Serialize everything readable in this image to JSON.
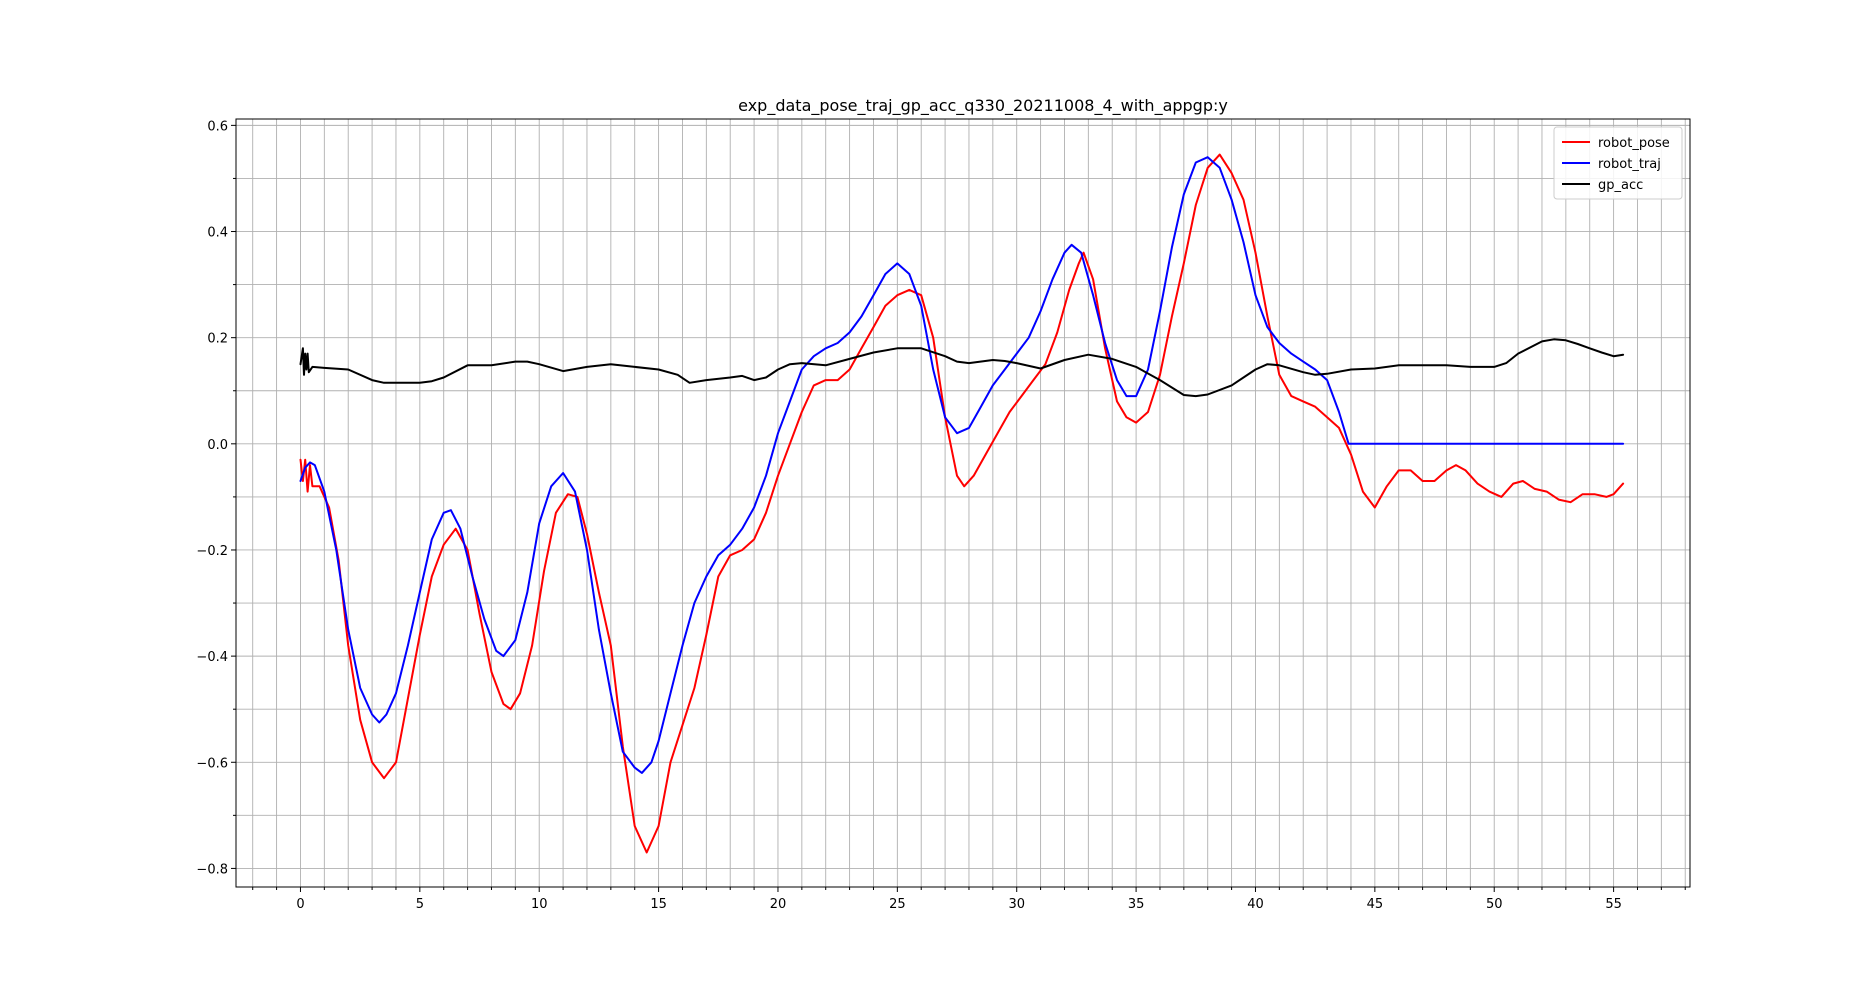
{
  "chart_data": {
    "type": "line",
    "title": "exp_data_pose_traj_gp_acc_q330_20211008_4_with_appgp:y",
    "xlabel": "",
    "ylabel": "",
    "xlim": [
      -2.7,
      58.2
    ],
    "ylim": [
      -0.835,
      0.612
    ],
    "x_major_ticks": [
      0,
      5,
      10,
      15,
      20,
      25,
      30,
      35,
      40,
      45,
      50,
      55
    ],
    "x_minor_step": 1,
    "y_major_ticks": [
      -0.8,
      -0.6,
      -0.4,
      -0.2,
      0.0,
      0.2,
      0.4,
      0.6
    ],
    "y_minor_step": 0.1,
    "y_tick_labels": [
      "−0.8",
      "−0.6",
      "−0.4",
      "−0.2",
      "0.0",
      "0.2",
      "0.4",
      "0.6"
    ],
    "grid": true,
    "legend_position": "top-right",
    "series": [
      {
        "name": "robot_pose",
        "color": "#ff0000",
        "points": [
          [
            0,
            -0.03
          ],
          [
            0.1,
            -0.07
          ],
          [
            0.2,
            -0.03
          ],
          [
            0.3,
            -0.09
          ],
          [
            0.4,
            -0.04
          ],
          [
            0.5,
            -0.08
          ],
          [
            0.8,
            -0.08
          ],
          [
            1.2,
            -0.12
          ],
          [
            1.6,
            -0.22
          ],
          [
            2.0,
            -0.38
          ],
          [
            2.5,
            -0.52
          ],
          [
            3.0,
            -0.6
          ],
          [
            3.5,
            -0.63
          ],
          [
            4.0,
            -0.6
          ],
          [
            4.5,
            -0.48
          ],
          [
            5.0,
            -0.36
          ],
          [
            5.5,
            -0.25
          ],
          [
            6.0,
            -0.19
          ],
          [
            6.5,
            -0.16
          ],
          [
            7.0,
            -0.2
          ],
          [
            7.5,
            -0.32
          ],
          [
            8.0,
            -0.43
          ],
          [
            8.5,
            -0.49
          ],
          [
            8.8,
            -0.5
          ],
          [
            9.2,
            -0.47
          ],
          [
            9.7,
            -0.38
          ],
          [
            10.2,
            -0.24
          ],
          [
            10.7,
            -0.13
          ],
          [
            11.2,
            -0.095
          ],
          [
            11.6,
            -0.1
          ],
          [
            12.0,
            -0.17
          ],
          [
            12.5,
            -0.28
          ],
          [
            13.0,
            -0.38
          ],
          [
            13.5,
            -0.57
          ],
          [
            14.0,
            -0.72
          ],
          [
            14.5,
            -0.77
          ],
          [
            15.0,
            -0.72
          ],
          [
            15.5,
            -0.6
          ],
          [
            16.0,
            -0.53
          ],
          [
            16.5,
            -0.46
          ],
          [
            17.0,
            -0.36
          ],
          [
            17.5,
            -0.25
          ],
          [
            18.0,
            -0.21
          ],
          [
            18.5,
            -0.2
          ],
          [
            19.0,
            -0.18
          ],
          [
            19.5,
            -0.13
          ],
          [
            20.0,
            -0.06
          ],
          [
            20.5,
            0.0
          ],
          [
            21.0,
            0.06
          ],
          [
            21.5,
            0.11
          ],
          [
            22.0,
            0.12
          ],
          [
            22.5,
            0.12
          ],
          [
            23.0,
            0.14
          ],
          [
            23.5,
            0.18
          ],
          [
            24.0,
            0.22
          ],
          [
            24.5,
            0.26
          ],
          [
            25.0,
            0.28
          ],
          [
            25.5,
            0.29
          ],
          [
            26.0,
            0.28
          ],
          [
            26.5,
            0.2
          ],
          [
            27.0,
            0.05
          ],
          [
            27.5,
            -0.06
          ],
          [
            27.8,
            -0.08
          ],
          [
            28.2,
            -0.06
          ],
          [
            28.7,
            -0.02
          ],
          [
            29.2,
            0.02
          ],
          [
            29.7,
            0.06
          ],
          [
            30.2,
            0.09
          ],
          [
            30.7,
            0.12
          ],
          [
            31.2,
            0.15
          ],
          [
            31.7,
            0.21
          ],
          [
            32.2,
            0.29
          ],
          [
            32.6,
            0.34
          ],
          [
            32.8,
            0.36
          ],
          [
            33.2,
            0.31
          ],
          [
            33.7,
            0.18
          ],
          [
            34.2,
            0.08
          ],
          [
            34.6,
            0.05
          ],
          [
            35.0,
            0.04
          ],
          [
            35.5,
            0.06
          ],
          [
            36.0,
            0.13
          ],
          [
            36.5,
            0.24
          ],
          [
            37.0,
            0.34
          ],
          [
            37.5,
            0.45
          ],
          [
            38.0,
            0.52
          ],
          [
            38.5,
            0.545
          ],
          [
            39.0,
            0.51
          ],
          [
            39.5,
            0.46
          ],
          [
            40.0,
            0.36
          ],
          [
            40.5,
            0.24
          ],
          [
            41.0,
            0.13
          ],
          [
            41.5,
            0.09
          ],
          [
            42.0,
            0.08
          ],
          [
            42.5,
            0.07
          ],
          [
            43.0,
            0.05
          ],
          [
            43.5,
            0.03
          ],
          [
            44.0,
            -0.02
          ],
          [
            44.5,
            -0.09
          ],
          [
            45.0,
            -0.12
          ],
          [
            45.5,
            -0.08
          ],
          [
            46.0,
            -0.05
          ],
          [
            46.5,
            -0.05
          ],
          [
            47.0,
            -0.07
          ],
          [
            47.5,
            -0.07
          ],
          [
            48.0,
            -0.05
          ],
          [
            48.4,
            -0.04
          ],
          [
            48.8,
            -0.05
          ],
          [
            49.3,
            -0.075
          ],
          [
            49.8,
            -0.09
          ],
          [
            50.3,
            -0.1
          ],
          [
            50.8,
            -0.075
          ],
          [
            51.2,
            -0.07
          ],
          [
            51.7,
            -0.085
          ],
          [
            52.2,
            -0.09
          ],
          [
            52.7,
            -0.105
          ],
          [
            53.2,
            -0.11
          ],
          [
            53.7,
            -0.095
          ],
          [
            54.2,
            -0.095
          ],
          [
            54.7,
            -0.1
          ],
          [
            55.0,
            -0.095
          ],
          [
            55.4,
            -0.075
          ]
        ]
      },
      {
        "name": "robot_traj",
        "color": "#0000ff",
        "points": [
          [
            0,
            -0.07
          ],
          [
            0.2,
            -0.045
          ],
          [
            0.4,
            -0.035
          ],
          [
            0.6,
            -0.04
          ],
          [
            1.0,
            -0.09
          ],
          [
            1.5,
            -0.2
          ],
          [
            2.0,
            -0.35
          ],
          [
            2.5,
            -0.46
          ],
          [
            3.0,
            -0.51
          ],
          [
            3.3,
            -0.525
          ],
          [
            3.6,
            -0.51
          ],
          [
            4.0,
            -0.47
          ],
          [
            4.5,
            -0.38
          ],
          [
            5.0,
            -0.28
          ],
          [
            5.5,
            -0.18
          ],
          [
            6.0,
            -0.13
          ],
          [
            6.3,
            -0.125
          ],
          [
            6.7,
            -0.16
          ],
          [
            7.2,
            -0.25
          ],
          [
            7.7,
            -0.33
          ],
          [
            8.2,
            -0.39
          ],
          [
            8.5,
            -0.4
          ],
          [
            9.0,
            -0.37
          ],
          [
            9.5,
            -0.28
          ],
          [
            10.0,
            -0.15
          ],
          [
            10.5,
            -0.08
          ],
          [
            11.0,
            -0.055
          ],
          [
            11.5,
            -0.09
          ],
          [
            12.0,
            -0.2
          ],
          [
            12.5,
            -0.35
          ],
          [
            13.0,
            -0.47
          ],
          [
            13.5,
            -0.58
          ],
          [
            14.0,
            -0.61
          ],
          [
            14.3,
            -0.62
          ],
          [
            14.7,
            -0.6
          ],
          [
            15.0,
            -0.56
          ],
          [
            15.5,
            -0.47
          ],
          [
            16.0,
            -0.38
          ],
          [
            16.5,
            -0.3
          ],
          [
            17.0,
            -0.25
          ],
          [
            17.5,
            -0.21
          ],
          [
            18.0,
            -0.19
          ],
          [
            18.5,
            -0.16
          ],
          [
            19.0,
            -0.12
          ],
          [
            19.5,
            -0.06
          ],
          [
            20.0,
            0.02
          ],
          [
            20.5,
            0.08
          ],
          [
            21.0,
            0.14
          ],
          [
            21.5,
            0.165
          ],
          [
            22.0,
            0.18
          ],
          [
            22.5,
            0.19
          ],
          [
            23.0,
            0.21
          ],
          [
            23.5,
            0.24
          ],
          [
            24.0,
            0.28
          ],
          [
            24.5,
            0.32
          ],
          [
            25.0,
            0.34
          ],
          [
            25.5,
            0.32
          ],
          [
            26.0,
            0.26
          ],
          [
            26.5,
            0.14
          ],
          [
            27.0,
            0.05
          ],
          [
            27.5,
            0.02
          ],
          [
            28.0,
            0.03
          ],
          [
            28.5,
            0.07
          ],
          [
            29.0,
            0.11
          ],
          [
            29.5,
            0.14
          ],
          [
            30.0,
            0.17
          ],
          [
            30.5,
            0.2
          ],
          [
            31.0,
            0.25
          ],
          [
            31.5,
            0.31
          ],
          [
            32.0,
            0.36
          ],
          [
            32.3,
            0.375
          ],
          [
            32.7,
            0.36
          ],
          [
            33.2,
            0.28
          ],
          [
            33.7,
            0.19
          ],
          [
            34.2,
            0.12
          ],
          [
            34.6,
            0.09
          ],
          [
            35.0,
            0.09
          ],
          [
            35.5,
            0.14
          ],
          [
            36.0,
            0.25
          ],
          [
            36.5,
            0.37
          ],
          [
            37.0,
            0.47
          ],
          [
            37.5,
            0.53
          ],
          [
            38.0,
            0.54
          ],
          [
            38.5,
            0.52
          ],
          [
            39.0,
            0.46
          ],
          [
            39.5,
            0.38
          ],
          [
            40.0,
            0.28
          ],
          [
            40.5,
            0.22
          ],
          [
            41.0,
            0.19
          ],
          [
            41.5,
            0.17
          ],
          [
            42.0,
            0.155
          ],
          [
            42.5,
            0.14
          ],
          [
            43.0,
            0.12
          ],
          [
            43.5,
            0.06
          ],
          [
            43.9,
            0.0
          ],
          [
            44.5,
            0.0
          ],
          [
            55.4,
            0.0
          ]
        ]
      },
      {
        "name": "gp_acc",
        "color": "#000000",
        "points": [
          [
            0,
            0.15
          ],
          [
            0.1,
            0.18
          ],
          [
            0.15,
            0.13
          ],
          [
            0.2,
            0.17
          ],
          [
            0.25,
            0.14
          ],
          [
            0.3,
            0.17
          ],
          [
            0.35,
            0.135
          ],
          [
            0.5,
            0.145
          ],
          [
            1.0,
            0.143
          ],
          [
            2.0,
            0.14
          ],
          [
            3.0,
            0.12
          ],
          [
            3.5,
            0.115
          ],
          [
            4.0,
            0.115
          ],
          [
            5.0,
            0.115
          ],
          [
            5.5,
            0.118
          ],
          [
            6.0,
            0.125
          ],
          [
            7.0,
            0.148
          ],
          [
            8.0,
            0.148
          ],
          [
            9.0,
            0.155
          ],
          [
            9.5,
            0.155
          ],
          [
            10.0,
            0.15
          ],
          [
            11.0,
            0.137
          ],
          [
            12.0,
            0.145
          ],
          [
            13.0,
            0.15
          ],
          [
            14.0,
            0.145
          ],
          [
            15.0,
            0.14
          ],
          [
            15.8,
            0.13
          ],
          [
            16.3,
            0.115
          ],
          [
            17.0,
            0.12
          ],
          [
            18.0,
            0.125
          ],
          [
            18.5,
            0.128
          ],
          [
            19.0,
            0.12
          ],
          [
            19.5,
            0.125
          ],
          [
            20.0,
            0.14
          ],
          [
            20.5,
            0.15
          ],
          [
            21.0,
            0.152
          ],
          [
            22.0,
            0.148
          ],
          [
            23.0,
            0.16
          ],
          [
            24.0,
            0.172
          ],
          [
            25.0,
            0.18
          ],
          [
            26.0,
            0.18
          ],
          [
            27.0,
            0.165
          ],
          [
            27.5,
            0.155
          ],
          [
            28.0,
            0.152
          ],
          [
            29.0,
            0.158
          ],
          [
            29.5,
            0.156
          ],
          [
            30.0,
            0.152
          ],
          [
            31.0,
            0.142
          ],
          [
            32.0,
            0.158
          ],
          [
            33.0,
            0.168
          ],
          [
            34.0,
            0.16
          ],
          [
            35.0,
            0.145
          ],
          [
            36.0,
            0.12
          ],
          [
            37.0,
            0.092
          ],
          [
            37.5,
            0.09
          ],
          [
            38.0,
            0.093
          ],
          [
            39.0,
            0.11
          ],
          [
            40.0,
            0.14
          ],
          [
            40.5,
            0.15
          ],
          [
            41.0,
            0.148
          ],
          [
            42.0,
            0.135
          ],
          [
            42.5,
            0.13
          ],
          [
            43.0,
            0.132
          ],
          [
            44.0,
            0.14
          ],
          [
            45.0,
            0.142
          ],
          [
            46.0,
            0.148
          ],
          [
            47.0,
            0.148
          ],
          [
            48.0,
            0.148
          ],
          [
            49.0,
            0.145
          ],
          [
            50.0,
            0.145
          ],
          [
            50.5,
            0.152
          ],
          [
            51.0,
            0.17
          ],
          [
            52.0,
            0.193
          ],
          [
            52.5,
            0.197
          ],
          [
            53.0,
            0.195
          ],
          [
            53.5,
            0.188
          ],
          [
            54.0,
            0.18
          ],
          [
            54.5,
            0.172
          ],
          [
            55.0,
            0.165
          ],
          [
            55.4,
            0.168
          ]
        ]
      }
    ]
  }
}
